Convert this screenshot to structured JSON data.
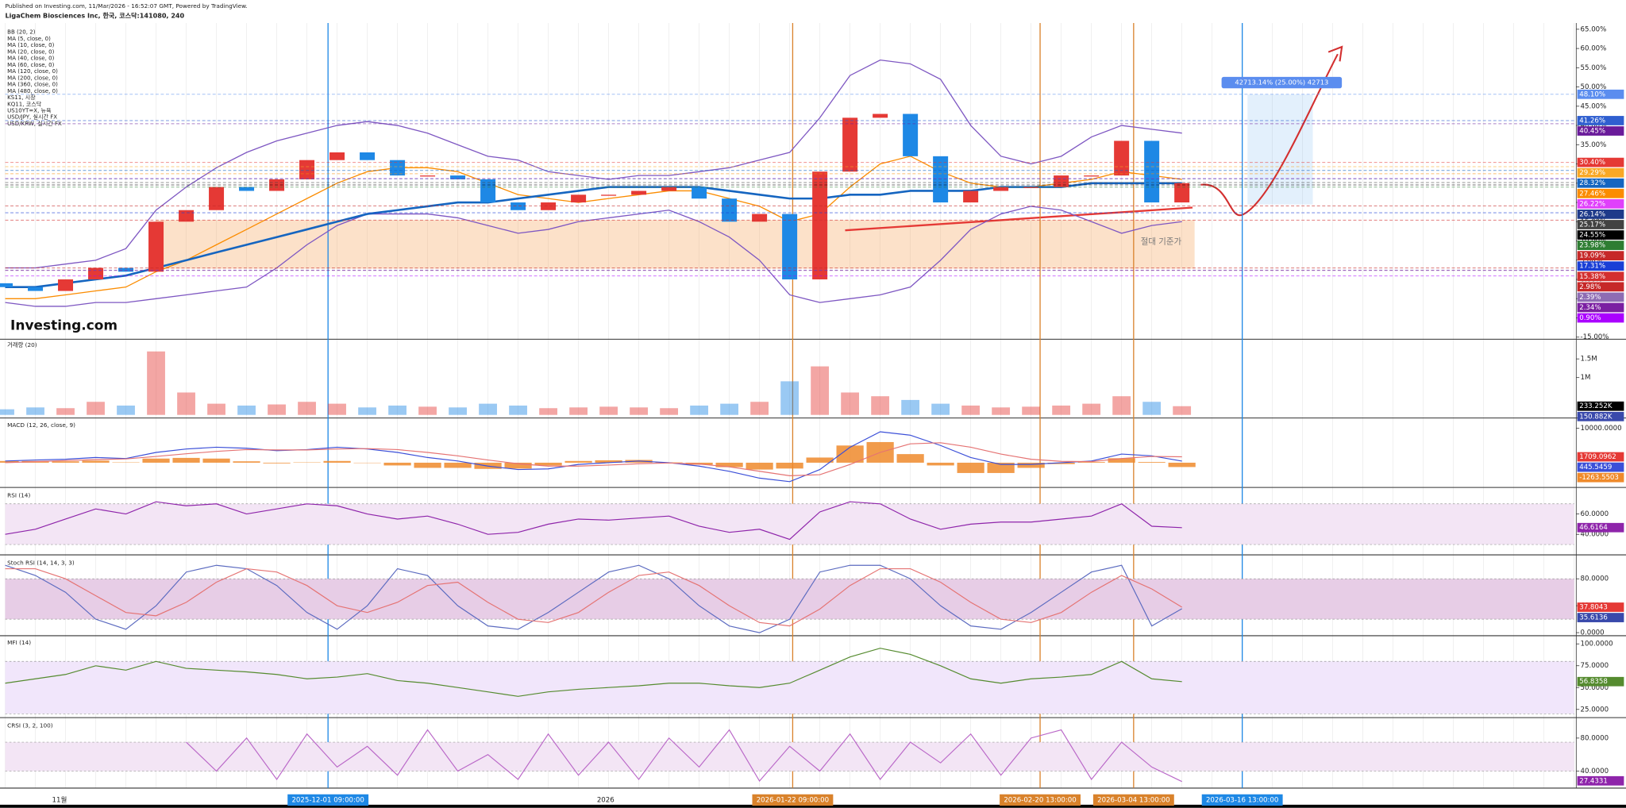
{
  "chart_data": [
    {
      "type": "candlestick",
      "subtitle": "Published on Investing.com, 11/Mar/2026 - 16:52:07 GMT, Powered by TradingView.",
      "title": "LigaChem Biosciences Inc, 한국, 코스닥:141080, 240",
      "logo": "Investing.com",
      "indicators": [
        "BB (20, 2)",
        "MA (5, close, 0)",
        "MA (10, close, 0)",
        "MA (20, close, 0)",
        "MA (40, close, 0)",
        "MA (60, close, 0)",
        "MA (120, close, 0)",
        "MA (200, close, 0)",
        "MA (360, close, 0)",
        "MA (480, close, 0)",
        "KS11, 시장",
        "KQ11, 코스닥",
        "US10YT=X, 뉴욕",
        "USD/JPY, 실시간 FX",
        "USD/KRW, 실시간 FX"
      ],
      "annotations": [
        "42713.14% (25.00%) 42713",
        "절대 기준가"
      ],
      "up_color": "#e53935",
      "down_color": "#1e88e5",
      "open": [
        -1,
        -2,
        -3,
        0,
        3,
        2,
        15,
        18,
        24,
        23,
        26,
        31,
        33,
        31,
        27,
        27,
        26,
        20,
        18,
        20,
        22,
        22,
        23,
        24,
        21,
        15,
        17,
        0,
        28,
        42,
        43,
        32,
        20,
        23,
        24,
        24,
        27,
        27,
        36,
        20
      ],
      "close": [
        -2,
        -3,
        0,
        3,
        2,
        15,
        18,
        24,
        23,
        26,
        31,
        33,
        31,
        27,
        27,
        26,
        20,
        18,
        20,
        22,
        22,
        23,
        24,
        21,
        15,
        17,
        0,
        28,
        42,
        43,
        32,
        20,
        23,
        24,
        24,
        27,
        27,
        36,
        20,
        25
      ],
      "series": [
        {
          "color": "#7e57c2",
          "values": [
            3,
            3,
            4,
            5,
            8,
            18,
            24,
            29,
            33,
            36,
            38,
            40,
            41,
            40,
            38,
            35,
            32,
            31,
            28,
            27,
            26,
            27,
            27,
            28,
            29,
            31,
            33,
            42,
            53,
            57,
            56,
            52,
            40,
            32,
            30,
            32,
            37,
            40,
            39,
            38
          ]
        },
        {
          "color": "#7e57c2",
          "values": [
            -6,
            -7,
            -7,
            -6,
            -6,
            -5,
            -4,
            -3,
            -2,
            3,
            9,
            14,
            17,
            17,
            17,
            16,
            14,
            12,
            13,
            15,
            16,
            17,
            18,
            15,
            11,
            5,
            -4,
            -6,
            -5,
            -4,
            -2,
            5,
            13,
            17,
            19,
            18,
            15,
            12,
            14,
            15
          ]
        },
        {
          "color": "#fb8c00",
          "values": [
            -5,
            -5,
            -4,
            -3,
            -2,
            2,
            5,
            9,
            13,
            17,
            21,
            25,
            28,
            29,
            29,
            28,
            25,
            22,
            21,
            20,
            21,
            22,
            23,
            23,
            21,
            19,
            15,
            17,
            24,
            30,
            32,
            28,
            25,
            24,
            24,
            25,
            26,
            28,
            27,
            26
          ]
        },
        {
          "color": "#1565c0",
          "values": [
            -2,
            -2,
            -1,
            0,
            1,
            3,
            5,
            7,
            9,
            11,
            13,
            15,
            17,
            18,
            19,
            20,
            20,
            21,
            22,
            23,
            24,
            24,
            24,
            24,
            23,
            22,
            21,
            21,
            22,
            22,
            23,
            23,
            23,
            24,
            24,
            24,
            25,
            25,
            25,
            25
          ]
        }
      ],
      "levels": {
        "values": [
          48.1,
          41.26,
          40.45,
          30.4,
          29.29,
          28.32,
          27.46,
          26.22,
          26.14,
          25.17,
          24.55,
          23.98,
          19.09,
          17.31,
          15.38,
          2.98,
          2.39,
          2.34,
          0.9
        ],
        "value_labels": [
          "48.10%",
          "41.26%",
          "40.45%",
          "30.40%",
          "29.29%",
          "28.32%",
          "27.46%",
          "26.22%",
          "26.14%",
          "25.17%",
          "24.55%",
          "23.98%",
          "19.09%",
          "17.31%",
          "15.38%",
          "2.98%",
          "2.39%",
          "2.34%",
          "0.90%"
        ],
        "colors": [
          "#5b8def",
          "#2f5fd0",
          "#6a1b9a",
          "#e53935",
          "#f9a825",
          "#1565c0",
          "#fb8c00",
          "#e040fb",
          "#1e3a8a",
          "#424242",
          "#000000",
          "#2e7d32",
          "#c62828",
          "#1a3fd6",
          "#d32f2f",
          "#c62828",
          "#8e6cb3",
          "#7b1fa2",
          "#aa00ff"
        ]
      },
      "xlim": [
        0,
        52
      ],
      "xticks": [
        {
          "value": 1.8,
          "label": "11월"
        },
        {
          "value": 10.7,
          "label": "2025-12-01 09:00:00",
          "color": "#1e88e5"
        },
        {
          "value": 19.9,
          "label": "2026"
        },
        {
          "value": 26.1,
          "label": "2026-01-22 09:00:00",
          "color": "#d9822b"
        },
        {
          "value": 34.3,
          "label": "2026-02-20 13:00:00",
          "color": "#d9822b"
        },
        {
          "value": 37.4,
          "label": "2026-03-04 13:00:00",
          "color": "#d9822b"
        },
        {
          "value": 41,
          "label": "2026-03-16 13:00:00",
          "color": "#1e88e5"
        }
      ],
      "ylim": [
        -15,
        65
      ],
      "yticks": [
        {
          "value": 65,
          "label": "65.00%"
        },
        {
          "value": 60,
          "label": "60.00%"
        },
        {
          "value": 55,
          "label": "55.00%"
        },
        {
          "value": 50,
          "label": "50.00%"
        },
        {
          "value": 45,
          "label": "45.00%"
        },
        {
          "value": 40,
          "label": "40.00%"
        },
        {
          "value": 35,
          "label": "35.00%"
        },
        {
          "value": 30,
          "label": "30.00%"
        },
        {
          "value": 25,
          "label": "25.00%"
        },
        {
          "value": 20,
          "label": "20.00%"
        },
        {
          "value": 15,
          "label": "15.00%"
        },
        {
          "value": 10,
          "label": "10.00%"
        },
        {
          "value": 5,
          "label": "5.00%"
        },
        {
          "value": 0,
          "label": "0.00%"
        },
        {
          "value": -5,
          "label": "-5.00%"
        },
        {
          "value": -10,
          "label": "-10.00%"
        },
        {
          "value": -15,
          "label": "-15.00%"
        }
      ]
    },
    {
      "type": "bar",
      "title": "거래량 (20)",
      "values": [
        150000,
        200000,
        180000,
        350000,
        250000,
        1700000,
        600000,
        300000,
        250000,
        280000,
        350000,
        300000,
        200000,
        250000,
        220000,
        200000,
        300000,
        250000,
        180000,
        200000,
        220000,
        200000,
        180000,
        250000,
        300000,
        350000,
        900000,
        1300000,
        600000,
        500000,
        400000,
        300000,
        250000,
        200000,
        220000,
        250000,
        300000,
        500000,
        350000,
        233252
      ],
      "ylim": [
        0,
        2000000
      ],
      "yticks": [
        {
          "value": 1500000,
          "label": "1.5M"
        },
        {
          "value": 1000000,
          "label": "1M"
        }
      ],
      "last": {
        "values": [
          233252,
          150882
        ],
        "value_labels": [
          "233.252K",
          "150.882K"
        ],
        "colors": [
          "#000000",
          "#3949ab"
        ]
      }
    },
    {
      "type": "macd",
      "title": "MACD (12, 26, close, 9)",
      "histogram": [
        500,
        500,
        400,
        600,
        100,
        1200,
        1400,
        1200,
        400,
        -200,
        100,
        500,
        -100,
        -800,
        -1500,
        -1500,
        -1800,
        -1700,
        -800,
        500,
        700,
        800,
        100,
        -600,
        -1300,
        -2000,
        -1700,
        1500,
        5000,
        6000,
        2500,
        -800,
        -3000,
        -3000,
        -1500,
        -400,
        200,
        1300,
        200,
        -1264
      ],
      "histogram_color": "#ef8a2b",
      "series": [
        {
          "color": "#3b4fd8",
          "values": [
            500,
            800,
            1000,
            1500,
            1200,
            3000,
            4000,
            4500,
            4200,
            3500,
            3800,
            4500,
            4000,
            3000,
            1500,
            500,
            -1000,
            -2000,
            -1800,
            -500,
            0,
            500,
            0,
            -1000,
            -2500,
            -4500,
            -5500,
            -2000,
            4500,
            9000,
            8000,
            5000,
            1500,
            -500,
            -500,
            0,
            500,
            2500,
            2000,
            446
          ]
        },
        {
          "color": "#e57373",
          "values": [
            0,
            300,
            600,
            900,
            1100,
            1800,
            2600,
            3300,
            3800,
            3700,
            3700,
            4000,
            4100,
            3800,
            3000,
            2000,
            800,
            -300,
            -1000,
            -1000,
            -700,
            -300,
            -100,
            -400,
            -1200,
            -2500,
            -3800,
            -3500,
            -500,
            3000,
            5500,
            5800,
            4500,
            2500,
            1000,
            400,
            300,
            1200,
            1800,
            1709
          ]
        }
      ],
      "ylim": [
        -6600,
        12400
      ],
      "yticks": [
        {
          "value": 10000,
          "label": "10000.0000"
        }
      ],
      "last": {
        "values": [
          1709.0962,
          445.5459,
          -1263.5503
        ],
        "value_labels": [
          "1709.0962",
          "445.5459",
          "-1263.5503"
        ],
        "colors": [
          "#e53935",
          "#3b4fd8",
          "#ef8a2b"
        ]
      }
    },
    {
      "type": "line",
      "title": "RSI (14)",
      "series": [
        {
          "color": "#8e24aa",
          "values": [
            40,
            45,
            55,
            65,
            60,
            72,
            68,
            70,
            60,
            65,
            70,
            68,
            60,
            55,
            58,
            50,
            40,
            42,
            50,
            55,
            54,
            56,
            58,
            48,
            42,
            45,
            35,
            62,
            72,
            70,
            55,
            45,
            50,
            52,
            52,
            55,
            58,
            70,
            48,
            46.6
          ]
        }
      ],
      "band": [
        30,
        70
      ],
      "band_color": "#f3e5f5",
      "ylim": [
        27,
        83
      ],
      "yticks": [
        {
          "value": 60,
          "label": "60.0000"
        },
        {
          "value": 40,
          "label": "40.0000"
        }
      ],
      "last": {
        "values": [
          46.6164
        ],
        "value_labels": [
          "46.6164"
        ],
        "colors": [
          "#8e24aa"
        ]
      }
    },
    {
      "type": "line",
      "title": "Stoch RSI (14, 14, 3, 3)",
      "series": [
        {
          "color": "#5c6bc0",
          "values": [
            100,
            85,
            60,
            20,
            5,
            40,
            90,
            100,
            95,
            70,
            30,
            5,
            40,
            95,
            85,
            40,
            10,
            5,
            30,
            60,
            90,
            100,
            80,
            40,
            10,
            0,
            20,
            90,
            100,
            100,
            80,
            40,
            10,
            5,
            30,
            60,
            90,
            100,
            10,
            35.6
          ]
        },
        {
          "color": "#e57373",
          "values": [
            95,
            95,
            80,
            55,
            30,
            25,
            45,
            75,
            95,
            90,
            70,
            40,
            30,
            45,
            70,
            75,
            45,
            20,
            15,
            30,
            60,
            85,
            90,
            70,
            40,
            15,
            10,
            35,
            70,
            95,
            95,
            75,
            45,
            20,
            15,
            30,
            60,
            85,
            65,
            37.8
          ]
        }
      ],
      "band": [
        20,
        80
      ],
      "band_color": "#e7cde6",
      "ylim": [
        -3,
        111
      ],
      "yticks": [
        {
          "value": 80,
          "label": "80.0000"
        },
        {
          "value": 40,
          "label": "40.0000"
        },
        {
          "value": 0,
          "label": "0.0000"
        }
      ],
      "last": {
        "values": [
          37.8043,
          35.6136
        ],
        "value_labels": [
          "37.8043",
          "35.6136"
        ],
        "colors": [
          "#e53935",
          "#3949ab"
        ]
      }
    },
    {
      "type": "line",
      "title": "MFI (14)",
      "series": [
        {
          "color": "#558b2f",
          "values": [
            55,
            60,
            65,
            75,
            70,
            80,
            72,
            70,
            68,
            65,
            60,
            62,
            66,
            58,
            55,
            50,
            45,
            40,
            45,
            48,
            50,
            52,
            55,
            55,
            52,
            50,
            55,
            70,
            85,
            95,
            88,
            75,
            60,
            55,
            60,
            62,
            65,
            80,
            60,
            56.8
          ]
        }
      ],
      "band": [
        20,
        80
      ],
      "band_color": "#f1e6fb",
      "ylim": [
        18,
        107
      ],
      "yticks": [
        {
          "value": 100,
          "label": "100.0000"
        },
        {
          "value": 75,
          "label": "75.0000"
        },
        {
          "value": 50,
          "label": "50.0000"
        },
        {
          "value": 25,
          "label": "25.0000"
        }
      ],
      "last": {
        "values": [
          56.8358
        ],
        "value_labels": [
          "56.8358"
        ],
        "colors": [
          "#558b2f"
        ]
      }
    },
    {
      "type": "line",
      "title": "CRSI (3, 2, 100)",
      "series": [
        {
          "color": "#ba68c8",
          "values": [
            null,
            null,
            null,
            null,
            null,
            null,
            75,
            40,
            80,
            30,
            85,
            45,
            70,
            35,
            90,
            40,
            60,
            30,
            85,
            35,
            75,
            30,
            80,
            45,
            90,
            28,
            70,
            40,
            85,
            30,
            75,
            50,
            85,
            35,
            80,
            90,
            30,
            75,
            45,
            27.4
          ]
        }
      ],
      "band": [
        40,
        75
      ],
      "band_color": "#f3e5f5",
      "ylim": [
        22,
        101
      ],
      "yticks": [
        {
          "value": 80,
          "label": "80.0000"
        },
        {
          "value": 40,
          "label": "40.0000"
        }
      ],
      "last": {
        "values": [
          27.4331
        ],
        "value_labels": [
          "27.4331"
        ],
        "colors": [
          "#8e24aa"
        ]
      }
    }
  ]
}
